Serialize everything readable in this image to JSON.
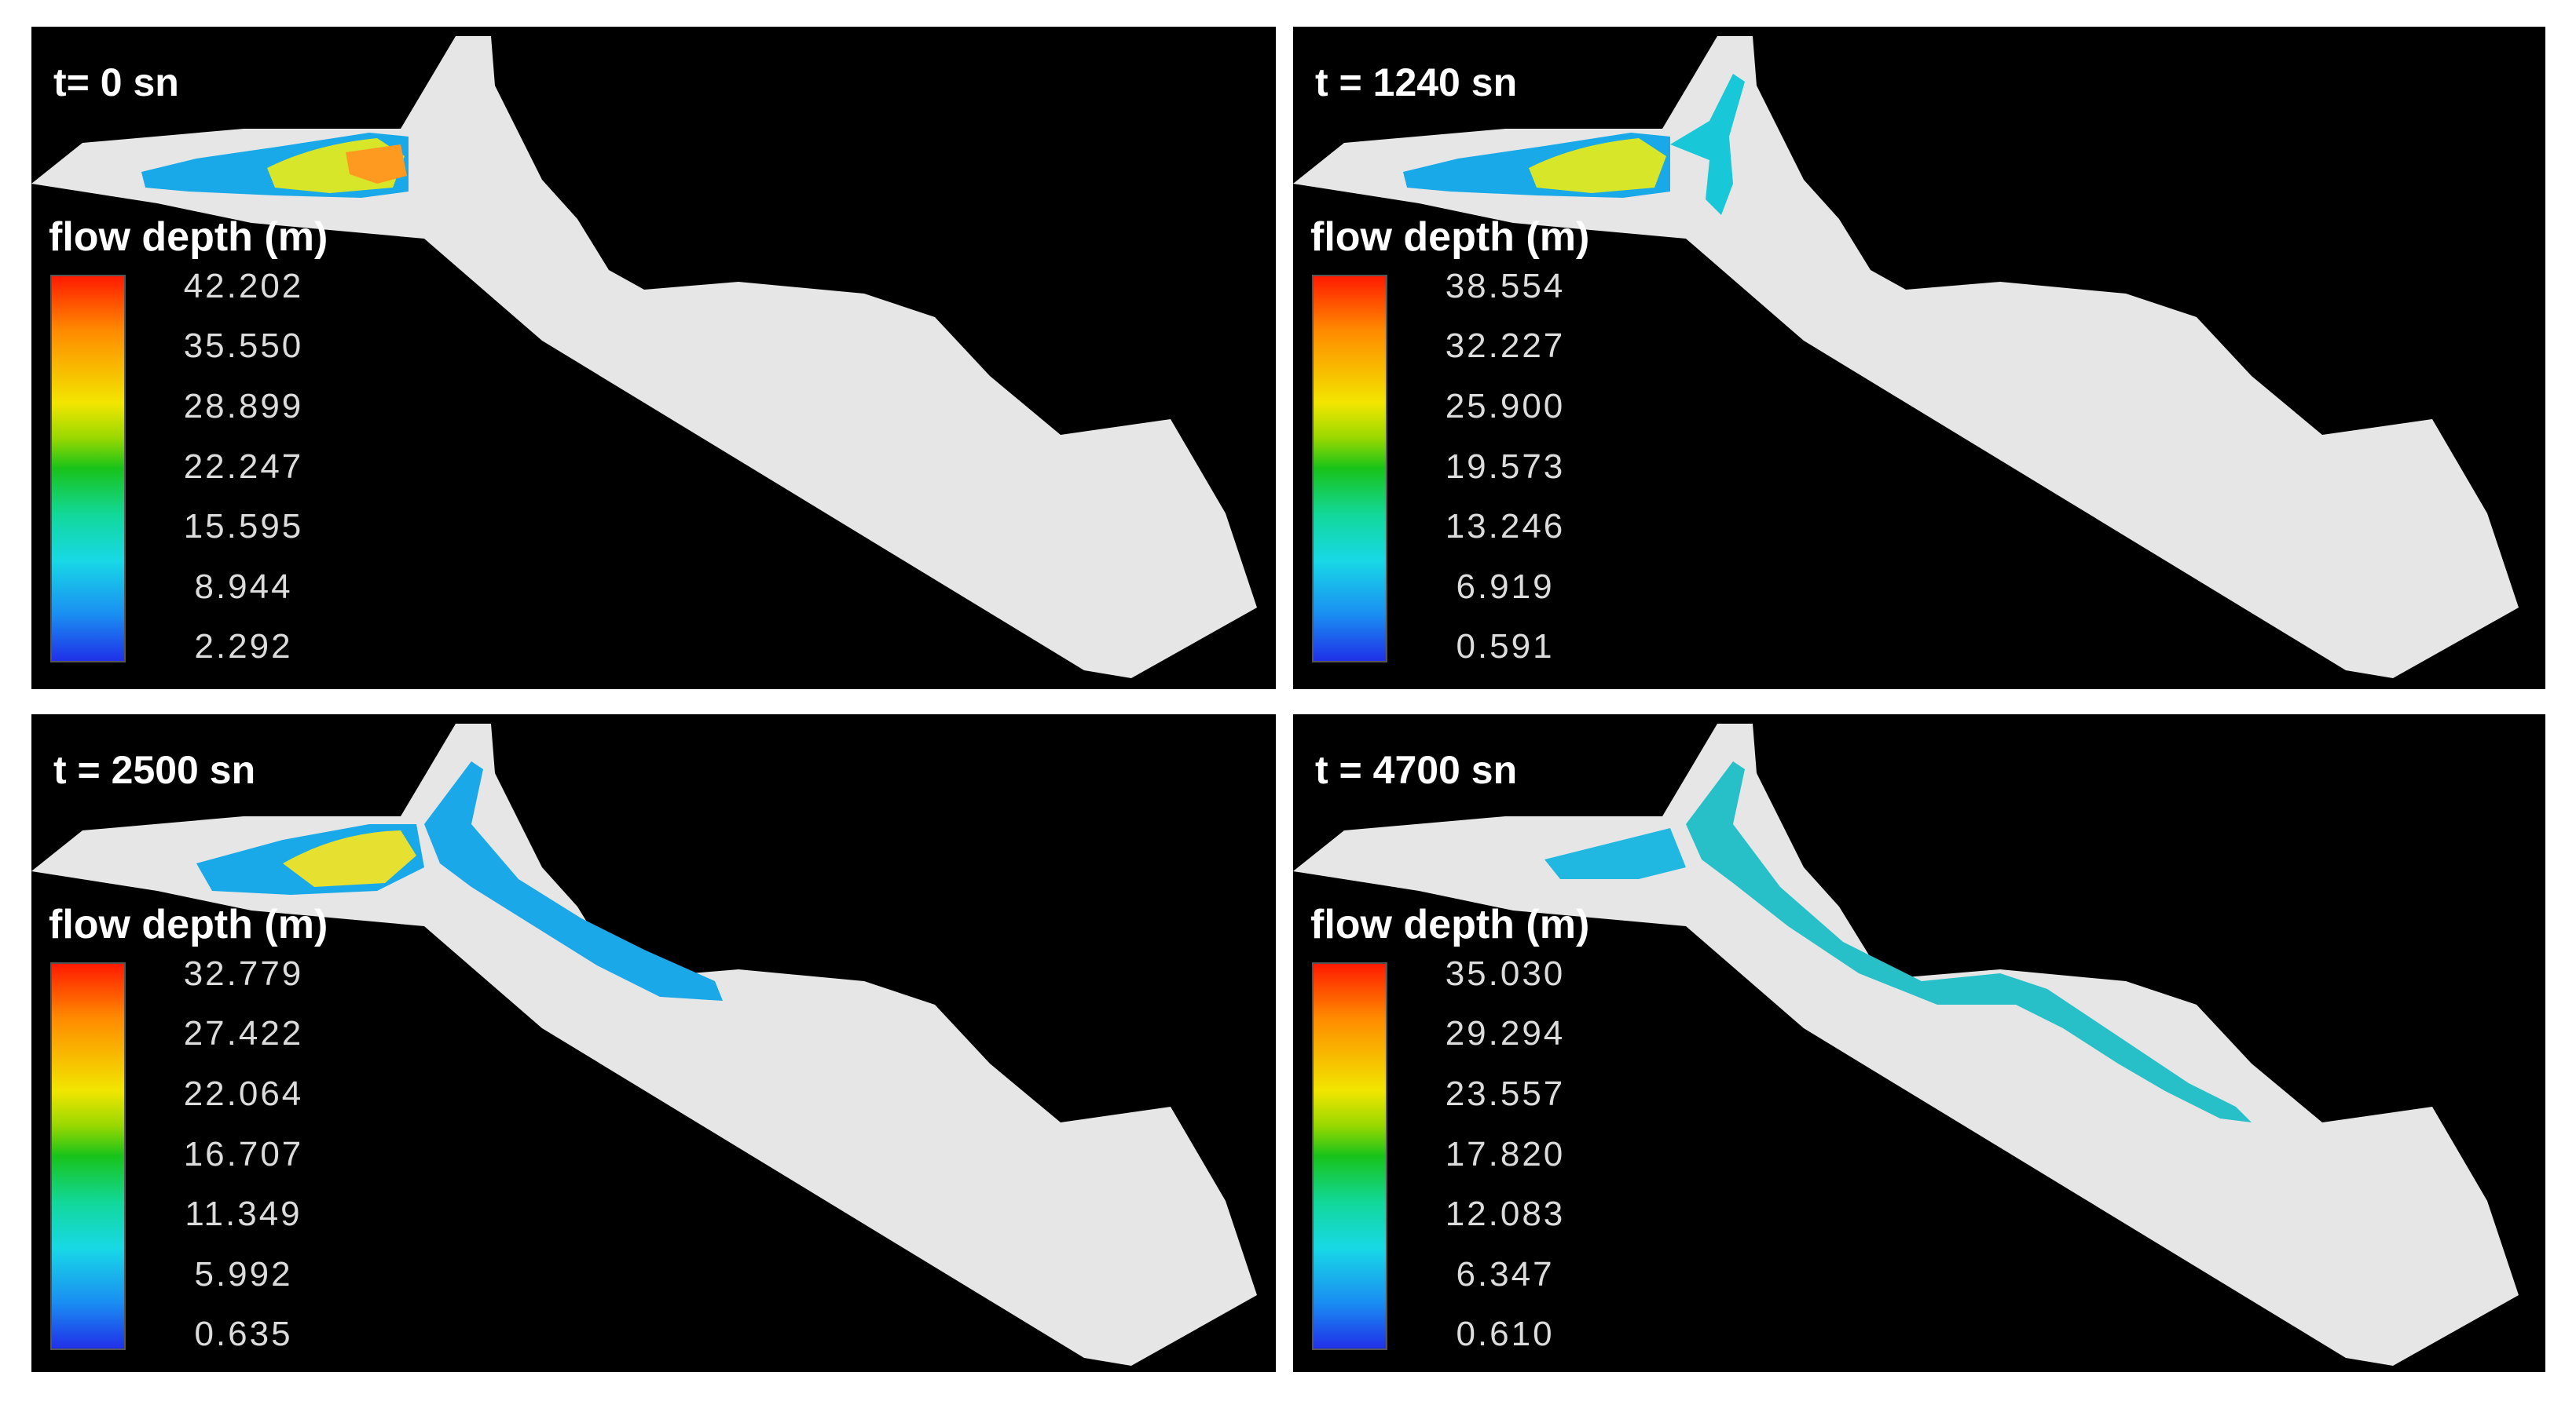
{
  "panels": [
    {
      "time_label": "t= 0 sn",
      "legend_title": "flow depth (m)",
      "legend_values": [
        "42.202",
        "35.550",
        "28.899",
        "22.247",
        "15.595",
        "8.944",
        "2.292"
      ]
    },
    {
      "time_label": "t = 1240 sn",
      "legend_title": "flow depth (m)",
      "legend_values": [
        "38.554",
        "32.227",
        "25.900",
        "19.573",
        "13.246",
        "6.919",
        "0.591"
      ]
    },
    {
      "time_label": "t = 2500 sn",
      "legend_title": "flow depth (m)",
      "legend_values": [
        "32.779",
        "27.422",
        "22.064",
        "16.707",
        "11.349",
        "5.992",
        "0.635"
      ]
    },
    {
      "time_label": "t = 4700 sn",
      "legend_title": "flow depth (m)",
      "legend_values": [
        "35.030",
        "29.294",
        "23.557",
        "17.820",
        "12.083",
        "6.347",
        "0.610"
      ]
    }
  ],
  "colors": {
    "background": "#000000",
    "terrain": "#e6e6e6",
    "colormap": [
      "#2030e8",
      "#1a8ef2",
      "#18d8e6",
      "#18c31a",
      "#f2e600",
      "#ff8a00",
      "#ff1a00"
    ]
  }
}
